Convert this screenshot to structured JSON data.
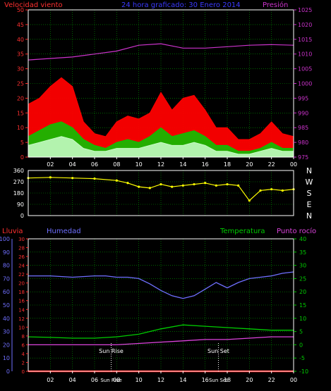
{
  "chart_data": [
    {
      "type": "line",
      "title": "24 hora graficado: 30 Enero 2014",
      "left_axis_label": "Velocidad viento",
      "right_axis_label": "Presión",
      "x_ticks": [
        "02",
        "04",
        "06",
        "08",
        "10",
        "12",
        "14",
        "16",
        "18",
        "20",
        "22",
        "00"
      ],
      "left_ticks": [
        "0",
        "5",
        "10",
        "15",
        "20",
        "25",
        "30",
        "35",
        "40",
        "45",
        "50"
      ],
      "right_ticks": [
        "975",
        "980",
        "985",
        "990",
        "995",
        "1000",
        "1005",
        "1010",
        "1015",
        "1020",
        "1025"
      ],
      "left_ylim": [
        0,
        50
      ],
      "right_ylim": [
        975,
        1025
      ],
      "x_hours": [
        0,
        24
      ],
      "grid": true,
      "series": [
        {
          "key": "gust",
          "color": "#ff0000",
          "x": [
            0,
            1,
            2,
            3,
            4,
            5,
            6,
            7,
            8,
            9,
            10,
            11,
            12,
            13,
            14,
            15,
            16,
            17,
            18,
            19,
            20,
            21,
            22,
            23,
            24
          ],
          "y": [
            18,
            20,
            24,
            27,
            24,
            12,
            8,
            7,
            12,
            14,
            13,
            15,
            22,
            16,
            20,
            21,
            16,
            10,
            10,
            6,
            6,
            8,
            12,
            8,
            7
          ]
        },
        {
          "key": "avg",
          "color": "#00cc00",
          "x": [
            0,
            1,
            2,
            3,
            4,
            5,
            6,
            7,
            8,
            9,
            10,
            11,
            12,
            13,
            14,
            15,
            16,
            17,
            18,
            19,
            20,
            21,
            22,
            23,
            24
          ],
          "y": [
            7,
            9,
            11,
            12,
            10,
            6,
            4,
            3,
            5,
            6,
            5,
            7,
            10,
            7,
            8,
            9,
            7,
            4,
            4,
            2,
            2,
            3,
            5,
            3,
            3
          ]
        },
        {
          "key": "calm",
          "color": "#ccffcc",
          "x": [
            0,
            1,
            2,
            3,
            4,
            5,
            6,
            7,
            8,
            9,
            10,
            11,
            12,
            13,
            14,
            15,
            16,
            17,
            18,
            19,
            20,
            21,
            22,
            23,
            24
          ],
          "y": [
            4,
            5,
            6,
            7,
            6,
            3,
            2,
            2,
            3,
            3,
            3,
            4,
            5,
            4,
            4,
            5,
            4,
            2,
            2,
            1,
            1,
            2,
            3,
            2,
            2
          ]
        },
        {
          "key": "pressure",
          "color": "#cc33cc",
          "axis": "right",
          "x": [
            0,
            2,
            4,
            6,
            8,
            10,
            12,
            14,
            16,
            18,
            20,
            22,
            24
          ],
          "y": [
            1008,
            1008.5,
            1009,
            1010,
            1011,
            1013,
            1013.5,
            1012,
            1012,
            1012.5,
            1013,
            1013.2,
            1013
          ]
        }
      ]
    },
    {
      "type": "scatter",
      "right_labels": [
        "N",
        "W",
        "S",
        "E",
        "N"
      ],
      "y_ticks": [
        "360",
        "270",
        "180",
        "90",
        "0"
      ],
      "ylim": [
        0,
        360
      ],
      "x_hours": [
        0,
        24
      ],
      "series": [
        {
          "key": "direction",
          "color": "#ffff00",
          "x": [
            0,
            2,
            4,
            6,
            8,
            9,
            10,
            11,
            12,
            13,
            14,
            15,
            16,
            17,
            18,
            19,
            20,
            21,
            22,
            23,
            24
          ],
          "y": [
            300,
            305,
            300,
            295,
            280,
            260,
            230,
            220,
            250,
            230,
            240,
            250,
            260,
            240,
            250,
            240,
            120,
            200,
            210,
            200,
            210
          ]
        }
      ]
    },
    {
      "type": "line",
      "labels": {
        "rain": "Lluvia",
        "humidity": "Humedad",
        "temperature": "Temperatura",
        "dewpoint": "Punto rocío"
      },
      "x_ticks": [
        "02",
        "04",
        "06",
        "08",
        "10",
        "12",
        "14",
        "16",
        "18",
        "20",
        "22",
        "00"
      ],
      "rain_ticks": [
        "0",
        "2",
        "4",
        "6",
        "8",
        "10",
        "12",
        "14",
        "16",
        "18",
        "20",
        "22",
        "24",
        "26",
        "28",
        "30"
      ],
      "humidity_ticks": [
        "0",
        "10",
        "20",
        "30",
        "40",
        "50",
        "60",
        "70",
        "80",
        "90",
        "100"
      ],
      "temp_ticks": [
        "-10",
        "-5",
        "0",
        "5",
        "10",
        "15",
        "20",
        "25",
        "30",
        "35",
        "40"
      ],
      "rain_ylim": [
        0,
        30
      ],
      "humidity_ylim": [
        0,
        100
      ],
      "temp_ylim": [
        -10,
        40
      ],
      "x_hours": [
        0,
        24
      ],
      "annotations": [
        {
          "text": "Sun Rise",
          "hour": 7.5
        },
        {
          "text": "Sun Set",
          "hour": 17.2
        }
      ],
      "bottom_labels": [
        "Sun Rise",
        "Sun Set"
      ],
      "series": [
        {
          "key": "humidity",
          "color": "#6f6fff",
          "axis": "humidity",
          "x": [
            0,
            2,
            4,
            6,
            7,
            8,
            9,
            10,
            11,
            12,
            13,
            14,
            15,
            16,
            17,
            18,
            19,
            20,
            21,
            22,
            23,
            24
          ],
          "y": [
            72,
            72,
            71,
            72,
            72,
            71,
            71,
            70,
            66,
            61,
            57,
            55,
            57,
            62,
            67,
            63,
            67,
            70,
            71,
            72,
            74,
            75
          ]
        },
        {
          "key": "temperature",
          "color": "#00cc00",
          "axis": "temp",
          "x": [
            0,
            2,
            4,
            6,
            8,
            10,
            12,
            14,
            16,
            18,
            20,
            22,
            24
          ],
          "y": [
            3,
            2.8,
            2.5,
            2.5,
            3,
            4,
            6,
            7.5,
            7,
            6.5,
            6,
            5.5,
            5.5
          ]
        },
        {
          "key": "dewpoint",
          "color": "#dd44dd",
          "axis": "temp",
          "x": [
            0,
            2,
            4,
            6,
            8,
            10,
            12,
            14,
            16,
            18,
            20,
            22,
            24
          ],
          "y": [
            0,
            0,
            0,
            0,
            0,
            0.5,
            1,
            1.5,
            2,
            2,
            2.5,
            3,
            3
          ]
        },
        {
          "key": "rain",
          "color": "#ff0000",
          "axis": "rain",
          "x": [
            0,
            24
          ],
          "y": [
            0,
            0
          ]
        }
      ]
    }
  ]
}
